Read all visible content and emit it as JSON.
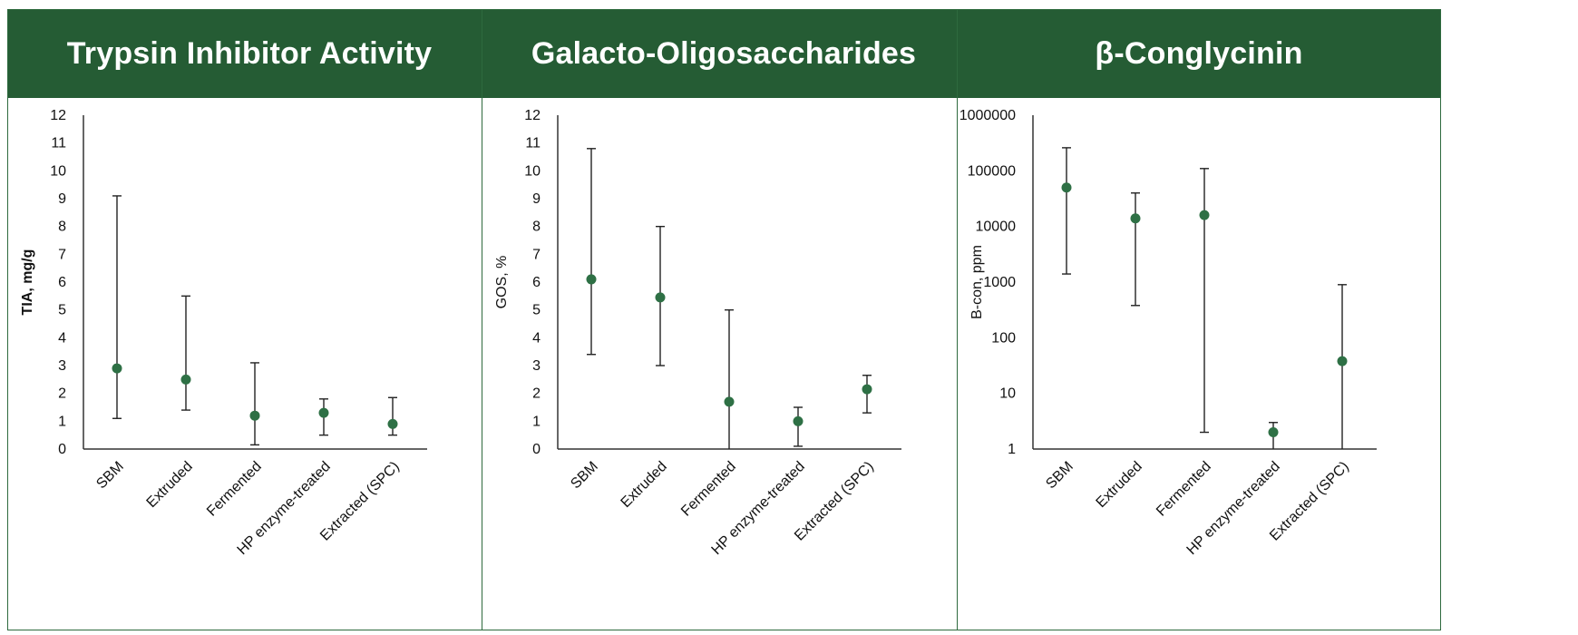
{
  "chart_data": [
    {
      "type": "scatter",
      "title": "Trypsin Inhibitor Activity",
      "ylabel": "TIA, mg/g",
      "ylabel_bold": true,
      "yscale": "linear",
      "ylim": [
        0,
        12
      ],
      "yticks": [
        "0",
        "1",
        "2",
        "3",
        "4",
        "5",
        "6",
        "7",
        "8",
        "9",
        "10",
        "11",
        "12"
      ],
      "categories": [
        "SBM",
        "Extruded",
        "Fermented",
        "HP enzyme-treated",
        "Extracted (SPC)"
      ],
      "values": [
        2.9,
        2.5,
        1.2,
        1.3,
        0.9
      ],
      "error_low": [
        1.1,
        1.4,
        0.15,
        0.5,
        0.5
      ],
      "error_high": [
        9.1,
        5.5,
        3.1,
        1.8,
        1.85
      ],
      "marker_color": "#2e7045",
      "grid": false
    },
    {
      "type": "scatter",
      "title": "Galacto-Oligosaccharides",
      "ylabel": "GOS, %",
      "ylabel_bold": false,
      "yscale": "linear",
      "ylim": [
        0,
        12
      ],
      "yticks": [
        "0",
        "1",
        "2",
        "3",
        "4",
        "5",
        "6",
        "7",
        "8",
        "9",
        "10",
        "11",
        "12"
      ],
      "categories": [
        "SBM",
        "Extruded",
        "Fermented",
        "HP enzyme-treated",
        "Extracted (SPC)"
      ],
      "values": [
        6.1,
        5.45,
        1.7,
        1.0,
        2.15
      ],
      "error_low": [
        3.4,
        3.0,
        0.0,
        0.1,
        1.3
      ],
      "error_high": [
        10.8,
        8.0,
        5.0,
        1.5,
        2.65
      ],
      "marker_color": "#2e7045",
      "grid": false
    },
    {
      "type": "scatter",
      "title": "β-Conglycinin",
      "ylabel": "B-con, ppm",
      "ylabel_bold": false,
      "yscale": "log",
      "ylim": [
        1,
        1000000
      ],
      "yticks": [
        "1",
        "10",
        "100",
        "1000",
        "10000",
        "100000",
        "1000000"
      ],
      "categories": [
        "SBM",
        "Extruded",
        "Fermented",
        "HP enzyme-treated",
        "Extracted (SPC)"
      ],
      "values": [
        50000,
        14000,
        16000,
        2,
        38
      ],
      "error_low": [
        1400,
        380,
        2,
        1,
        1
      ],
      "error_high": [
        260000,
        40000,
        110000,
        3,
        900
      ],
      "marker_color": "#2e7045",
      "grid": false
    }
  ]
}
